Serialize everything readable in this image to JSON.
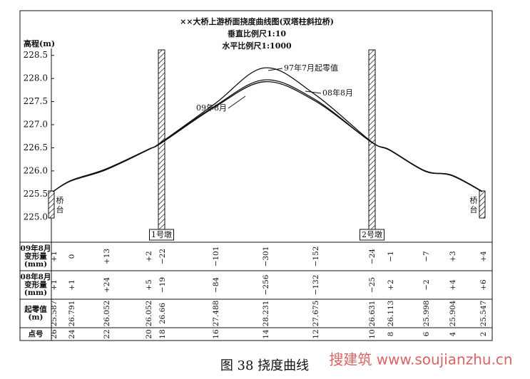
{
  "chart_data": {
    "type": "line",
    "title": "××大桥上游桥面挠度曲线图(双塔柱斜拉桥)",
    "subtitle": [
      "垂直比例尺1:10",
      "水平比例尺1:1000"
    ],
    "y_label": "高程(m)",
    "categories": [
      26,
      24,
      22,
      20,
      18,
      16,
      14,
      12,
      10,
      8,
      6,
      4,
      2
    ],
    "ylim": [
      224.95,
      228.65
    ],
    "yticks": [
      {
        "value": 225,
        "label": "225.0"
      },
      225.5,
      {
        "value": 226,
        "label": "226.0"
      },
      226.5,
      {
        "value": 227,
        "label": "227.0"
      },
      227.5,
      {
        "value": 228,
        "label": "228.0"
      },
      228.5
    ],
    "series": [
      {
        "name": "97年7月起零值",
        "color": "#111111",
        "values": [
          225.55,
          225.78,
          226.02,
          226.45,
          226.62,
          227.45,
          228.23,
          227.66,
          226.64,
          226.45,
          226.0,
          225.9,
          225.55
        ]
      },
      {
        "name": "08年8月",
        "color": "#111111",
        "values": [
          225.55,
          225.79,
          226.04,
          226.46,
          226.61,
          227.4,
          227.97,
          227.55,
          226.63,
          226.46,
          226.0,
          225.91,
          225.56
        ]
      },
      {
        "name": "09年8月",
        "color": "#111111",
        "values": [
          225.55,
          225.78,
          226.03,
          226.46,
          226.6,
          227.38,
          227.93,
          227.52,
          226.63,
          226.45,
          225.99,
          225.91,
          225.55
        ]
      }
    ],
    "piers": [
      "1号墩",
      "2号墩"
    ],
    "abutments": [
      "桥台",
      "桥台"
    ]
  },
  "table": {
    "row_headers": [
      [
        "09年8月",
        "变形量",
        "(mm)"
      ],
      [
        "08年8月",
        "变形量",
        "(mm)"
      ],
      [
        "起零值",
        "(m)"
      ],
      [
        "点号"
      ]
    ],
    "deformation_09": [
      "+1",
      "0",
      "+13",
      "+2",
      "−22",
      "−101",
      "−301",
      "−152",
      "−24",
      "−1",
      "−7",
      "+3",
      "+4"
    ],
    "deformation_08": [
      "+1",
      "+1",
      "+24",
      "+5",
      "−19",
      "−84",
      "−256",
      "−132",
      "−25",
      "+2",
      "−2",
      "+4",
      "+6"
    ],
    "zero_values": [
      25.587,
      26.791,
      26.052,
      26.052,
      26.66,
      27.488,
      28.231,
      27.675,
      26.631,
      26.113,
      25.998,
      25.904,
      25.547
    ]
  },
  "caption": "图 38   挠度曲线",
  "watermark": "搜建筑 www.soujianzhu.cn"
}
